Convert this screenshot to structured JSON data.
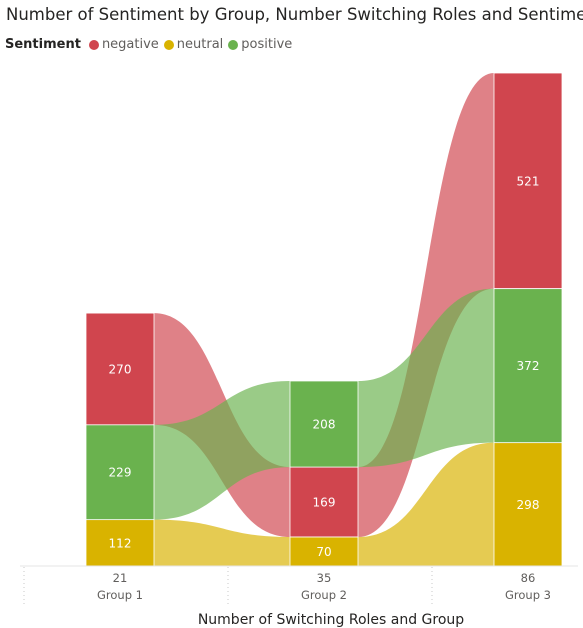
{
  "title": "Number of Sentiment by Group, Number Switching Roles and Sentiment",
  "legend": {
    "title": "Sentiment",
    "items": [
      {
        "label": "negative",
        "color": "#d0454e"
      },
      {
        "label": "neutral",
        "color": "#d9b300"
      },
      {
        "label": "positive",
        "color": "#6ab24e"
      }
    ]
  },
  "chart_data": {
    "type": "ribbon",
    "title": "Number of Sentiment by Group, Number Switching Roles and Sentiment",
    "xlabel": "Number of Switching Roles and Group",
    "ylabel": "",
    "legend_position": "top-left",
    "categories": [
      {
        "value": "21",
        "group": "Group 1"
      },
      {
        "value": "35",
        "group": "Group 2"
      },
      {
        "value": "86",
        "group": "Group 3"
      }
    ],
    "series": [
      {
        "name": "negative",
        "color": "#d0454e",
        "values": [
          270,
          169,
          521
        ]
      },
      {
        "name": "neutral",
        "color": "#d9b300",
        "values": [
          112,
          70,
          298
        ]
      },
      {
        "name": "positive",
        "color": "#6ab24e",
        "values": [
          229,
          208,
          372
        ]
      }
    ]
  }
}
